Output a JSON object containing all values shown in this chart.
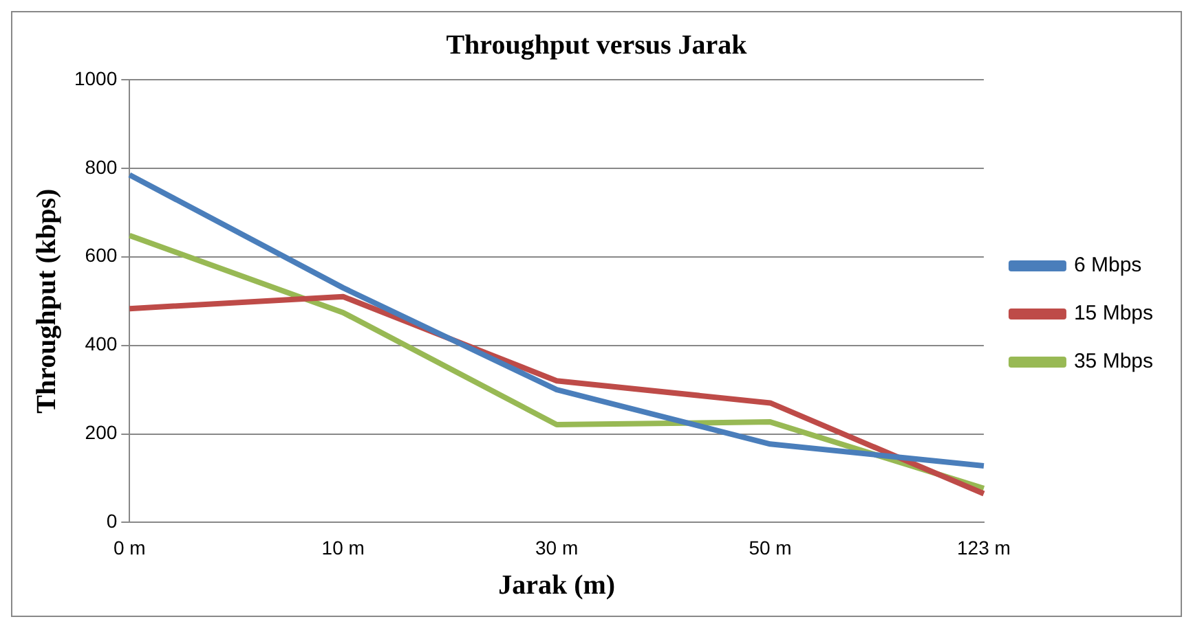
{
  "chart_data": {
    "type": "line",
    "title": "Throughput versus Jarak",
    "xlabel": "Jarak (m)",
    "ylabel": "Throughput (kbps)",
    "categories": [
      "0 m",
      "10 m",
      "30 m",
      "50 m",
      "123 m"
    ],
    "series": [
      {
        "name": "6 Mbps",
        "color": "#4a7ebb",
        "values": [
          785,
          530,
          300,
          177,
          128
        ]
      },
      {
        "name": "15 Mbps",
        "color": "#be4b48",
        "values": [
          483,
          510,
          320,
          270,
          65
        ]
      },
      {
        "name": "35 Mbps",
        "color": "#98b954",
        "values": [
          648,
          474,
          221,
          227,
          77
        ]
      }
    ],
    "ylim": [
      0,
      1000
    ],
    "yticks": [
      0,
      200,
      400,
      600,
      800,
      1000
    ],
    "grid": "y",
    "legend": "right",
    "marker": "none",
    "line_style": "solid"
  }
}
